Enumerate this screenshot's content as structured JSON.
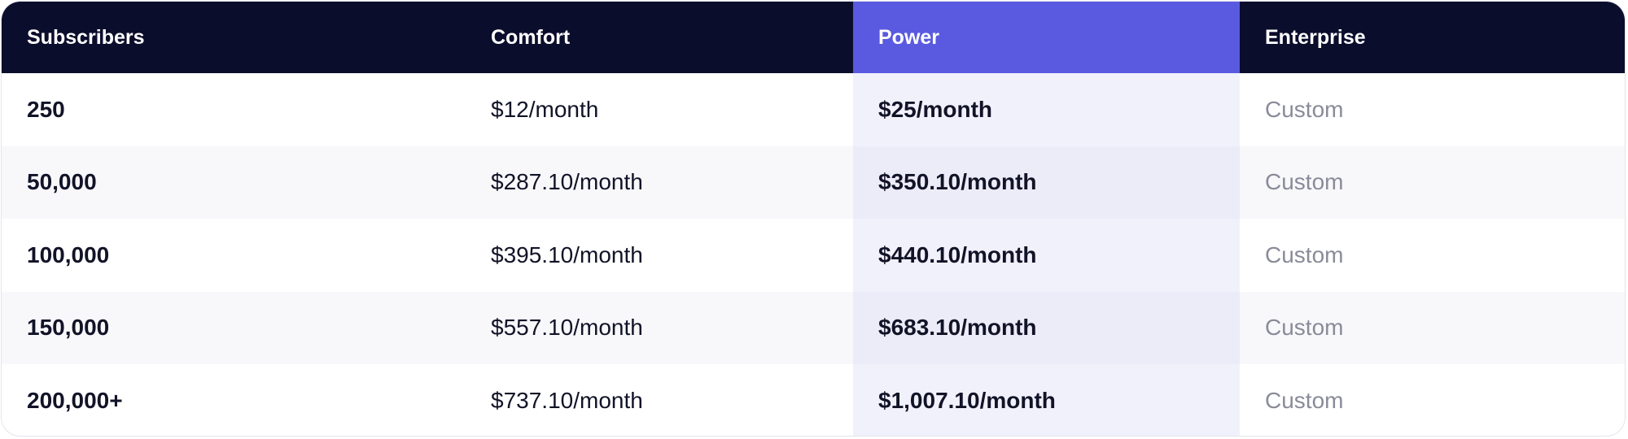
{
  "table": {
    "headers": {
      "subscribers": "Subscribers",
      "comfort": "Comfort",
      "power": "Power",
      "enterprise": "Enterprise"
    },
    "rows": [
      {
        "subscribers": "250",
        "comfort": "$12/month",
        "power": "$25/month",
        "enterprise": "Custom"
      },
      {
        "subscribers": "50,000",
        "comfort": "$287.10/month",
        "power": "$350.10/month",
        "enterprise": "Custom"
      },
      {
        "subscribers": "100,000",
        "comfort": "$395.10/month",
        "power": "$440.10/month",
        "enterprise": "Custom"
      },
      {
        "subscribers": "150,000",
        "comfort": "$557.10/month",
        "power": "$683.10/month",
        "enterprise": "Custom"
      },
      {
        "subscribers": "200,000+",
        "comfort": "$737.10/month",
        "power": "$1,007.10/month",
        "enterprise": "Custom"
      }
    ]
  },
  "colors": {
    "header_bg": "#0b0d2c",
    "highlight_header_bg": "#5a5ae0",
    "highlight_column_bg": "#f1f1fc",
    "muted_text": "#8a8b99"
  }
}
